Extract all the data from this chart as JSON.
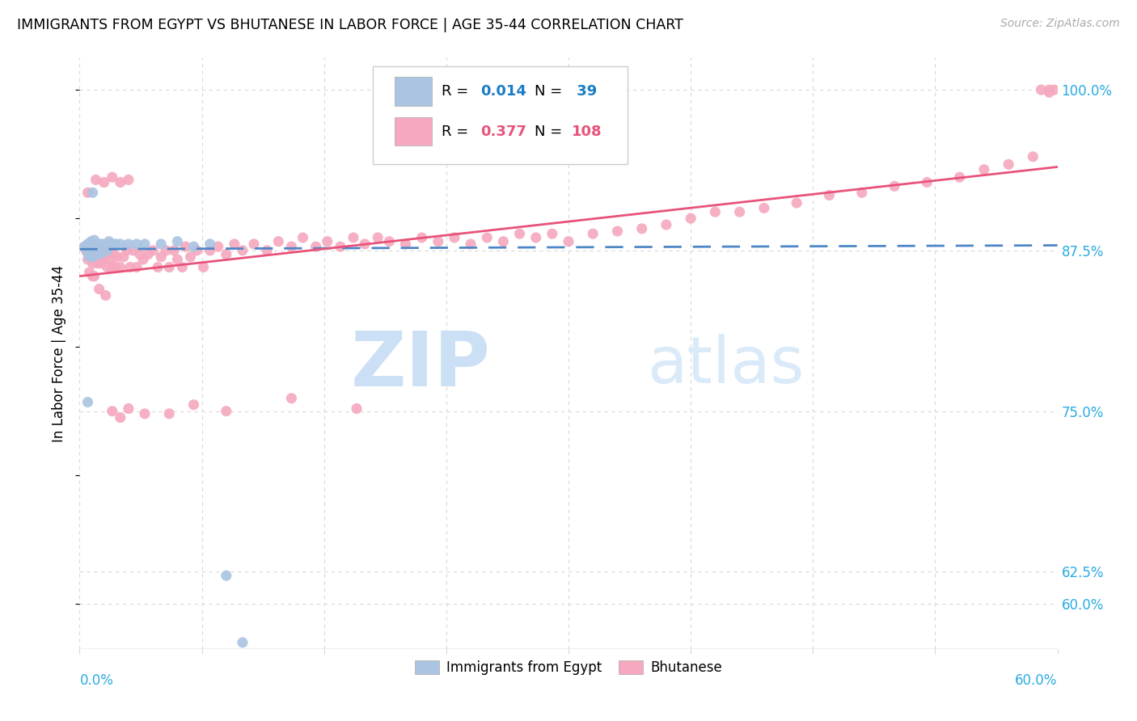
{
  "title": "IMMIGRANTS FROM EGYPT VS BHUTANESE IN LABOR FORCE | AGE 35-44 CORRELATION CHART",
  "source": "Source: ZipAtlas.com",
  "ylabel": "In Labor Force | Age 35-44",
  "ytick_values": [
    0.6,
    0.625,
    0.75,
    0.875,
    1.0
  ],
  "ytick_labels": [
    "60.0%",
    "62.5%",
    "75.0%",
    "87.5%",
    "100.0%"
  ],
  "xtick_values": [
    0.0,
    0.075,
    0.15,
    0.225,
    0.3,
    0.375,
    0.45,
    0.525,
    0.6
  ],
  "xlim": [
    0.0,
    0.6
  ],
  "ylim": [
    0.565,
    1.025
  ],
  "egypt_R": "0.014",
  "egypt_N": "39",
  "bhutan_R": "0.377",
  "bhutan_N": "108",
  "egypt_color": "#aac4e2",
  "bhutan_color": "#f5a8be",
  "egypt_line_color": "#4f86c6",
  "bhutan_line_color": "#e8537a",
  "grid_color": "#d8d8d8",
  "tick_color": "#29abe2",
  "watermark_color_zip": "#cce0f5",
  "watermark_color_atlas": "#daeaf8",
  "egypt_x": [
    0.003,
    0.004,
    0.005,
    0.005,
    0.006,
    0.006,
    0.007,
    0.007,
    0.008,
    0.008,
    0.009,
    0.009,
    0.01,
    0.01,
    0.011,
    0.011,
    0.012,
    0.012,
    0.013,
    0.013,
    0.014,
    0.015,
    0.016,
    0.017,
    0.018,
    0.02,
    0.022,
    0.025,
    0.03,
    0.035,
    0.04,
    0.05,
    0.06,
    0.07,
    0.08,
    0.005,
    0.008,
    0.09,
    0.1
  ],
  "egypt_y": [
    0.878,
    0.878,
    0.88,
    0.873,
    0.876,
    0.87,
    0.882,
    0.872,
    0.878,
    0.87,
    0.883,
    0.875,
    0.88,
    0.873,
    0.88,
    0.875,
    0.88,
    0.872,
    0.878,
    0.873,
    0.88,
    0.878,
    0.878,
    0.875,
    0.882,
    0.88,
    0.88,
    0.88,
    0.88,
    0.88,
    0.88,
    0.88,
    0.882,
    0.878,
    0.88,
    0.757,
    0.92,
    0.622,
    0.57
  ],
  "bhutan_x": [
    0.004,
    0.005,
    0.006,
    0.007,
    0.008,
    0.009,
    0.01,
    0.011,
    0.012,
    0.013,
    0.014,
    0.015,
    0.016,
    0.017,
    0.018,
    0.019,
    0.02,
    0.021,
    0.022,
    0.023,
    0.025,
    0.027,
    0.029,
    0.031,
    0.033,
    0.035,
    0.037,
    0.039,
    0.042,
    0.045,
    0.048,
    0.05,
    0.053,
    0.055,
    0.058,
    0.06,
    0.063,
    0.065,
    0.068,
    0.072,
    0.076,
    0.08,
    0.085,
    0.09,
    0.095,
    0.1,
    0.107,
    0.115,
    0.122,
    0.13,
    0.137,
    0.145,
    0.152,
    0.16,
    0.168,
    0.175,
    0.183,
    0.19,
    0.2,
    0.21,
    0.22,
    0.23,
    0.24,
    0.25,
    0.26,
    0.27,
    0.28,
    0.29,
    0.3,
    0.315,
    0.33,
    0.345,
    0.36,
    0.375,
    0.39,
    0.405,
    0.42,
    0.44,
    0.46,
    0.48,
    0.5,
    0.52,
    0.54,
    0.555,
    0.57,
    0.585,
    0.595,
    0.008,
    0.012,
    0.016,
    0.02,
    0.025,
    0.03,
    0.04,
    0.055,
    0.07,
    0.09,
    0.13,
    0.17,
    0.59,
    0.595,
    0.598,
    0.005,
    0.01,
    0.015,
    0.02,
    0.025,
    0.03
  ],
  "bhutan_y": [
    0.875,
    0.868,
    0.858,
    0.872,
    0.865,
    0.855,
    0.87,
    0.865,
    0.87,
    0.865,
    0.875,
    0.868,
    0.872,
    0.862,
    0.875,
    0.868,
    0.862,
    0.872,
    0.862,
    0.87,
    0.862,
    0.87,
    0.875,
    0.862,
    0.875,
    0.862,
    0.872,
    0.868,
    0.872,
    0.875,
    0.862,
    0.87,
    0.875,
    0.862,
    0.875,
    0.868,
    0.862,
    0.878,
    0.87,
    0.875,
    0.862,
    0.875,
    0.878,
    0.872,
    0.88,
    0.875,
    0.88,
    0.875,
    0.882,
    0.878,
    0.885,
    0.878,
    0.882,
    0.878,
    0.885,
    0.88,
    0.885,
    0.882,
    0.88,
    0.885,
    0.882,
    0.885,
    0.88,
    0.885,
    0.882,
    0.888,
    0.885,
    0.888,
    0.882,
    0.888,
    0.89,
    0.892,
    0.895,
    0.9,
    0.905,
    0.905,
    0.908,
    0.912,
    0.918,
    0.92,
    0.925,
    0.928,
    0.932,
    0.938,
    0.942,
    0.948,
    1.0,
    0.855,
    0.845,
    0.84,
    0.75,
    0.745,
    0.752,
    0.748,
    0.748,
    0.755,
    0.75,
    0.76,
    0.752,
    1.0,
    0.998,
    1.0,
    0.92,
    0.93,
    0.928,
    0.932,
    0.928,
    0.93
  ]
}
